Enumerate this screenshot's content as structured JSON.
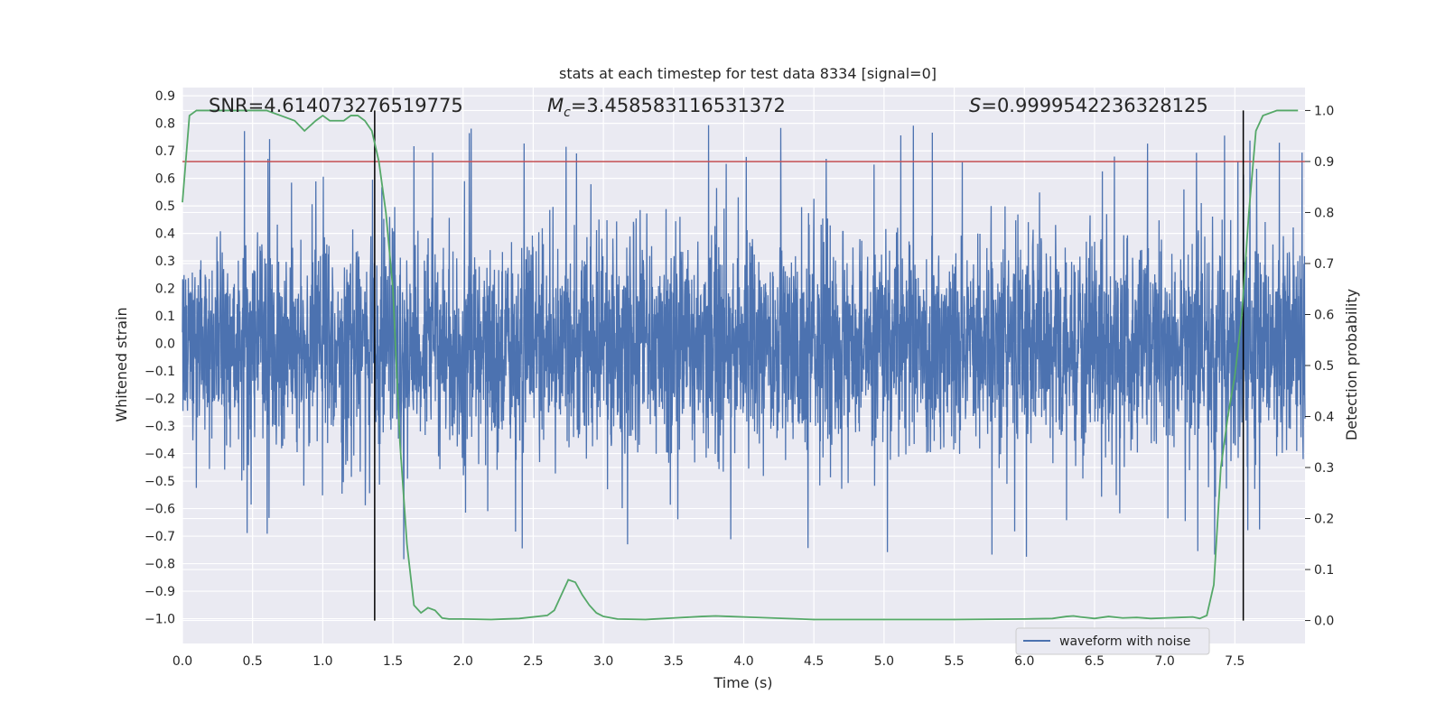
{
  "chart_data": {
    "type": "line",
    "title": "stats at each timestep for test data 8334 [signal=0]",
    "xlabel": "Time (s)",
    "ylabel_left": "Whitened strain",
    "ylabel_right": "Detection probability",
    "xlim": [
      0.0,
      8.0
    ],
    "ylim_left": [
      -1.09,
      0.93
    ],
    "ylim_right": [
      -0.045,
      1.045
    ],
    "x_ticks": [
      "0.0",
      "0.5",
      "1.0",
      "1.5",
      "2.0",
      "2.5",
      "3.0",
      "3.5",
      "4.0",
      "4.5",
      "5.0",
      "5.5",
      "6.0",
      "6.5",
      "7.0",
      "7.5"
    ],
    "y_ticks_left": [
      "0.9",
      "0.8",
      "0.7",
      "0.6",
      "0.5",
      "0.4",
      "0.3",
      "0.2",
      "0.1",
      "0.0",
      "-0.1",
      "-0.2",
      "-0.3",
      "-0.4",
      "-0.5",
      "-0.6",
      "-0.7",
      "-0.8",
      "-0.9",
      "-1.0"
    ],
    "y_ticks_right": [
      "0.0",
      "0.1",
      "0.2",
      "0.3",
      "0.4",
      "0.5",
      "0.6",
      "0.7",
      "0.8",
      "0.9",
      "1.0"
    ],
    "grid": true,
    "legend": {
      "location": "lower-right",
      "entries": [
        "waveform with noise"
      ]
    },
    "annotations": {
      "snr": "SNR=4.614073276519775",
      "mc_symbol": "M",
      "mc_sub": "c",
      "mc_value": "=3.458583116531372",
      "s_symbol": "S",
      "s_value": "=0.9999542236328125"
    },
    "series": [
      {
        "name": "waveform with noise",
        "axis": "left",
        "color": "#4c72b0",
        "description_envelope": {
          "typical_min": -0.45,
          "typical_max": 0.45,
          "peak_max": 0.84,
          "peak_min": -1.0
        }
      },
      {
        "axis": "right",
        "color": "#55a868",
        "x": [
          0.0,
          0.05,
          0.1,
          0.2,
          0.3,
          0.4,
          0.5,
          0.6,
          0.7,
          0.8,
          0.87,
          0.95,
          1.0,
          1.05,
          1.1,
          1.15,
          1.2,
          1.25,
          1.3,
          1.35,
          1.4,
          1.45,
          1.5,
          1.55,
          1.6,
          1.65,
          1.7,
          1.75,
          1.8,
          1.85,
          1.9,
          2.0,
          2.2,
          2.4,
          2.6,
          2.65,
          2.7,
          2.75,
          2.8,
          2.85,
          2.9,
          2.95,
          3.0,
          3.1,
          3.3,
          3.5,
          3.7,
          3.8,
          3.9,
          4.0,
          4.2,
          4.5,
          5.0,
          5.5,
          6.0,
          6.2,
          6.3,
          6.35,
          6.4,
          6.5,
          6.6,
          6.7,
          6.8,
          6.9,
          7.0,
          7.1,
          7.2,
          7.25,
          7.3,
          7.35,
          7.4,
          7.45,
          7.5,
          7.55,
          7.6,
          7.65,
          7.7,
          7.8,
          7.95
        ],
        "y": [
          0.82,
          0.99,
          1.0,
          1.0,
          1.0,
          1.0,
          1.0,
          1.0,
          0.99,
          0.98,
          0.96,
          0.98,
          0.99,
          0.98,
          0.98,
          0.98,
          0.99,
          0.99,
          0.98,
          0.96,
          0.9,
          0.8,
          0.65,
          0.35,
          0.15,
          0.03,
          0.015,
          0.025,
          0.02,
          0.005,
          0.003,
          0.003,
          0.002,
          0.004,
          0.01,
          0.02,
          0.05,
          0.08,
          0.075,
          0.05,
          0.03,
          0.015,
          0.008,
          0.003,
          0.002,
          0.005,
          0.008,
          0.009,
          0.008,
          0.007,
          0.005,
          0.002,
          0.002,
          0.002,
          0.003,
          0.004,
          0.008,
          0.009,
          0.007,
          0.004,
          0.008,
          0.005,
          0.006,
          0.004,
          0.005,
          0.006,
          0.007,
          0.004,
          0.01,
          0.07,
          0.3,
          0.4,
          0.48,
          0.6,
          0.8,
          0.96,
          0.99,
          1.0,
          1.0
        ]
      }
    ],
    "threshold_line": {
      "axis": "right",
      "y": 0.9,
      "color": "#c44e52"
    },
    "vertical_lines": [
      {
        "x": 1.37,
        "color": "#000000",
        "y_from_right": 0.0,
        "y_to_right": 1.0
      },
      {
        "x": 7.56,
        "color": "#000000",
        "y_from_right": 0.0,
        "y_to_right": 1.0
      }
    ]
  }
}
